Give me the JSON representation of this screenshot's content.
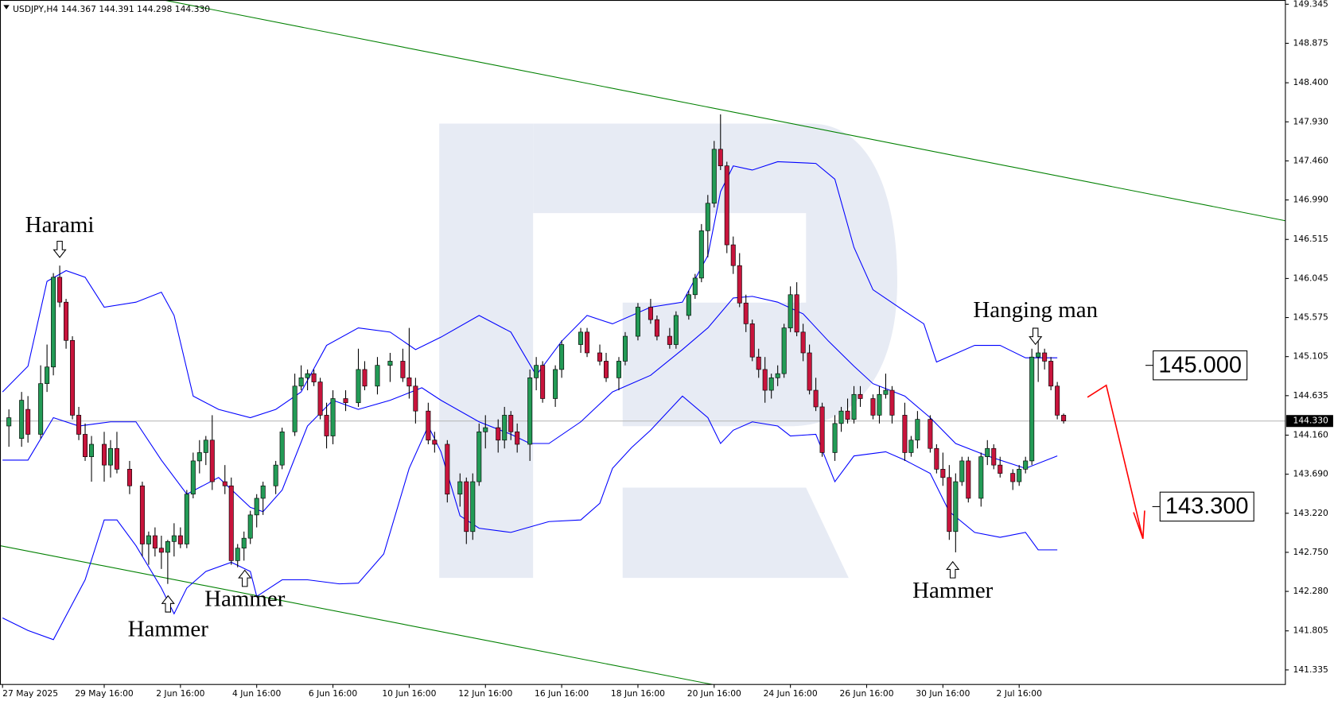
{
  "chart_data": {
    "type": "candlestick",
    "title": "USDJPY,H4  144.367 144.391 144.298 144.330",
    "up_color": "#239b56",
    "down_color": "#c8143c",
    "xlim": [
      -0.4,
      201.9
    ],
    "ylim": [
      141.16,
      149.396
    ],
    "yticks": [
      149.345,
      148.875,
      {
        "value": 148.4,
        "label": "148.400"
      },
      {
        "value": 147.93,
        "label": "147.930"
      },
      {
        "value": 147.46,
        "label": "147.460"
      },
      {
        "value": 146.99,
        "label": "146.990"
      },
      146.515,
      146.045,
      145.575,
      145.105,
      144.635,
      {
        "value": 144.16,
        "label": "144.160"
      },
      {
        "value": 143.69,
        "label": "143.690"
      },
      {
        "value": 143.22,
        "label": "143.220"
      },
      {
        "value": 142.75,
        "label": "142.750"
      },
      {
        "value": 142.28,
        "label": "142.280"
      },
      141.805,
      141.335
    ],
    "xticks": [
      {
        "value": 0,
        "label": "27 May 2025"
      },
      {
        "value": 16,
        "label": "29 May 16:00"
      },
      {
        "value": 28,
        "label": "2 Jun 16:00"
      },
      {
        "value": 40,
        "label": "4 Jun 16:00"
      },
      {
        "value": 52,
        "label": "6 Jun 16:00"
      },
      {
        "value": 64,
        "label": "10 Jun 16:00"
      },
      {
        "value": 76,
        "label": "12 Jun 16:00"
      },
      {
        "value": 88,
        "label": "16 Jun 16:00"
      },
      {
        "value": 100,
        "label": "18 Jun 16:00"
      },
      {
        "value": 112,
        "label": "20 Jun 16:00"
      },
      {
        "value": 124,
        "label": "24 Jun 16:00"
      },
      {
        "value": 136,
        "label": "26 Jun 16:00"
      },
      {
        "value": 148,
        "label": "30 Jun 16:00"
      },
      {
        "value": 160,
        "label": "2 Jul 16:00"
      }
    ],
    "x": [
      1,
      3,
      4,
      6,
      7,
      8,
      9,
      10,
      11,
      12,
      13,
      14,
      16,
      17,
      18,
      20,
      22,
      23,
      24,
      25,
      26,
      27,
      28,
      29,
      30,
      31,
      32,
      33,
      35,
      36,
      37,
      38,
      39,
      40,
      41,
      43,
      44,
      46,
      47,
      48,
      49,
      50,
      51,
      52,
      54,
      56,
      57,
      59,
      61,
      63,
      64,
      65,
      67,
      68,
      70,
      72,
      73,
      74,
      75,
      76,
      78,
      79,
      80,
      81,
      83,
      84,
      85,
      87,
      88,
      91,
      92,
      94,
      95,
      97,
      98,
      100,
      102,
      103,
      105,
      106,
      108,
      109,
      110,
      111,
      112,
      113,
      114,
      115,
      116,
      117,
      118,
      119,
      120,
      121,
      122,
      123,
      124,
      125,
      126,
      127,
      128,
      129,
      131,
      132,
      133,
      134,
      135,
      137,
      138,
      139,
      140,
      142,
      143,
      144,
      146,
      147,
      148,
      149,
      150,
      151,
      152,
      154,
      155,
      156,
      157,
      159,
      160,
      161,
      162,
      163,
      164,
      165,
      166,
      167
    ],
    "ohlc": [
      [
        144.27,
        144.47,
        144.02,
        144.37
      ],
      [
        144.12,
        144.68,
        144.02,
        144.58
      ],
      [
        144.47,
        144.63,
        144.07,
        144.17
      ],
      [
        144.17,
        145.0,
        144.12,
        144.78
      ],
      [
        144.78,
        145.25,
        144.68,
        144.98
      ],
      [
        144.98,
        146.11,
        144.88,
        146.06
      ],
      [
        146.06,
        146.2,
        145.7,
        145.76
      ],
      [
        145.76,
        145.8,
        145.2,
        145.3
      ],
      [
        145.3,
        145.35,
        144.35,
        144.4
      ],
      [
        144.4,
        144.5,
        144.1,
        144.17
      ],
      [
        144.17,
        144.3,
        143.85,
        143.9
      ],
      [
        143.9,
        144.15,
        143.6,
        144.05
      ],
      [
        144.05,
        144.2,
        143.6,
        143.8
      ],
      [
        143.8,
        144.1,
        143.65,
        144.0
      ],
      [
        144.0,
        144.2,
        143.7,
        143.75
      ],
      [
        143.75,
        143.85,
        143.45,
        143.55
      ],
      [
        143.55,
        143.6,
        142.7,
        142.85
      ],
      [
        142.85,
        143.0,
        142.6,
        142.95
      ],
      [
        142.95,
        143.05,
        142.7,
        142.8
      ],
      [
        142.8,
        142.95,
        142.55,
        142.75
      ],
      [
        142.75,
        142.9,
        142.37,
        142.88
      ],
      [
        142.88,
        143.1,
        142.7,
        142.95
      ],
      [
        142.95,
        143.05,
        142.8,
        142.85
      ],
      [
        142.85,
        143.5,
        142.8,
        143.45
      ],
      [
        143.45,
        143.95,
        143.4,
        143.85
      ],
      [
        143.85,
        144.1,
        143.7,
        143.95
      ],
      [
        143.95,
        144.15,
        143.8,
        144.1
      ],
      [
        144.1,
        144.4,
        143.5,
        143.6
      ],
      [
        143.6,
        143.8,
        143.45,
        143.55
      ],
      [
        143.55,
        143.65,
        142.6,
        142.65
      ],
      [
        142.65,
        142.85,
        142.57,
        142.8
      ],
      [
        142.8,
        143.0,
        142.65,
        142.92
      ],
      [
        142.92,
        143.25,
        142.85,
        143.2
      ],
      [
        143.2,
        143.45,
        143.05,
        143.4
      ],
      [
        143.4,
        143.6,
        143.2,
        143.55
      ],
      [
        143.55,
        143.85,
        143.45,
        143.8
      ],
      [
        143.8,
        144.25,
        143.75,
        144.2
      ],
      [
        144.2,
        144.9,
        144.15,
        144.75
      ],
      [
        144.75,
        145.0,
        144.7,
        144.85
      ],
      [
        144.85,
        144.95,
        144.7,
        144.9
      ],
      [
        144.9,
        144.95,
        144.75,
        144.8
      ],
      [
        144.8,
        144.85,
        144.35,
        144.4
      ],
      [
        144.4,
        144.55,
        144.0,
        144.15
      ],
      [
        144.15,
        144.7,
        144.05,
        144.6
      ],
      [
        144.6,
        144.7,
        144.45,
        144.55
      ],
      [
        144.55,
        145.2,
        144.5,
        144.95
      ],
      [
        144.95,
        145.05,
        144.7,
        144.75
      ],
      [
        144.75,
        145.1,
        144.65,
        145.0
      ],
      [
        145.0,
        145.15,
        144.8,
        145.05
      ],
      [
        145.05,
        145.2,
        144.8,
        144.85
      ],
      [
        144.85,
        145.45,
        144.6,
        144.75
      ],
      [
        144.75,
        144.85,
        144.3,
        144.45
      ],
      [
        144.45,
        144.55,
        144.05,
        144.1
      ],
      [
        144.1,
        144.2,
        143.95,
        144.05
      ],
      [
        144.05,
        144.1,
        143.35,
        143.45
      ],
      [
        143.45,
        143.7,
        143.3,
        143.6
      ],
      [
        143.6,
        143.65,
        142.85,
        143.0
      ],
      [
        143.0,
        143.7,
        142.9,
        143.6
      ],
      [
        143.6,
        144.3,
        143.55,
        144.2
      ],
      [
        144.2,
        144.4,
        144.0,
        144.25
      ],
      [
        144.25,
        144.35,
        143.95,
        144.1
      ],
      [
        144.1,
        144.5,
        144.0,
        144.4
      ],
      [
        144.4,
        144.45,
        144.1,
        144.2
      ],
      [
        144.2,
        144.3,
        143.95,
        144.05
      ],
      [
        144.05,
        144.95,
        143.85,
        144.85
      ],
      [
        144.85,
        145.1,
        144.7,
        145.0
      ],
      [
        145.0,
        145.05,
        144.55,
        144.6
      ],
      [
        144.6,
        145.0,
        144.5,
        144.95
      ],
      [
        144.95,
        145.3,
        144.85,
        145.25
      ],
      [
        145.25,
        145.45,
        145.15,
        145.4
      ],
      [
        145.4,
        145.45,
        145.1,
        145.15
      ],
      [
        145.15,
        145.25,
        145.0,
        145.05
      ],
      [
        145.05,
        145.15,
        144.8,
        144.85
      ],
      [
        144.85,
        145.1,
        144.7,
        145.05
      ],
      [
        145.05,
        145.4,
        145.0,
        145.35
      ],
      [
        145.35,
        145.75,
        145.3,
        145.7
      ],
      [
        145.7,
        145.8,
        145.5,
        145.55
      ],
      [
        145.55,
        145.6,
        145.3,
        145.35
      ],
      [
        145.35,
        145.45,
        145.2,
        145.25
      ],
      [
        145.25,
        145.65,
        145.2,
        145.6
      ],
      [
        145.6,
        145.9,
        145.55,
        145.85
      ],
      [
        145.85,
        146.1,
        145.8,
        146.05
      ],
      [
        146.05,
        146.7,
        146.0,
        146.62
      ],
      [
        146.62,
        147.05,
        146.3,
        146.95
      ],
      [
        146.95,
        147.7,
        146.9,
        147.6
      ],
      [
        147.6,
        148.02,
        147.35,
        147.4
      ],
      [
        147.4,
        147.45,
        146.35,
        146.45
      ],
      [
        146.45,
        146.55,
        146.1,
        146.2
      ],
      [
        146.2,
        146.35,
        145.7,
        145.75
      ],
      [
        145.75,
        145.85,
        145.4,
        145.5
      ],
      [
        145.5,
        145.55,
        145.05,
        145.1
      ],
      [
        145.1,
        145.2,
        144.85,
        144.95
      ],
      [
        144.95,
        145.1,
        144.55,
        144.7
      ],
      [
        144.7,
        144.9,
        144.6,
        144.85
      ],
      [
        144.85,
        145.0,
        144.75,
        144.9
      ],
      [
        144.9,
        145.5,
        144.85,
        145.45
      ],
      [
        145.45,
        145.95,
        145.4,
        145.85
      ],
      [
        145.85,
        146.0,
        145.35,
        145.4
      ],
      [
        145.4,
        145.5,
        145.05,
        145.15
      ],
      [
        145.15,
        145.25,
        144.65,
        144.7
      ],
      [
        144.7,
        144.85,
        144.45,
        144.5
      ],
      [
        144.5,
        144.55,
        143.9,
        143.95
      ],
      [
        143.95,
        144.4,
        143.85,
        144.3
      ],
      [
        144.3,
        144.5,
        144.2,
        144.45
      ],
      [
        144.45,
        144.6,
        144.3,
        144.35
      ],
      [
        144.35,
        144.75,
        144.3,
        144.65
      ],
      [
        144.65,
        144.75,
        144.5,
        144.6
      ],
      [
        144.6,
        144.65,
        144.35,
        144.4
      ],
      [
        144.4,
        144.75,
        144.3,
        144.65
      ],
      [
        144.65,
        144.9,
        144.6,
        144.7
      ],
      [
        144.7,
        144.75,
        144.3,
        144.4
      ],
      [
        144.4,
        144.55,
        143.85,
        143.95
      ],
      [
        143.95,
        144.15,
        143.9,
        144.1
      ],
      [
        144.1,
        144.45,
        144.0,
        144.35
      ],
      [
        144.35,
        144.4,
        143.95,
        144.0
      ],
      [
        144.0,
        144.05,
        143.7,
        143.75
      ],
      [
        143.75,
        143.95,
        143.55,
        143.65
      ],
      [
        143.65,
        143.8,
        142.9,
        143.0
      ],
      [
        143.0,
        143.7,
        142.75,
        143.6
      ],
      [
        143.6,
        143.9,
        143.55,
        143.85
      ],
      [
        143.85,
        143.9,
        143.35,
        143.4
      ],
      [
        143.4,
        143.95,
        143.3,
        143.9
      ],
      [
        143.9,
        144.1,
        143.8,
        144.0
      ],
      [
        144.0,
        144.05,
        143.75,
        143.8
      ],
      [
        143.8,
        143.9,
        143.65,
        143.7
      ],
      [
        143.7,
        143.75,
        143.5,
        143.6
      ],
      [
        143.6,
        143.8,
        143.55,
        143.75
      ],
      [
        143.75,
        143.9,
        143.7,
        143.85
      ],
      [
        143.85,
        145.2,
        143.8,
        145.1
      ],
      [
        145.1,
        145.3,
        144.8,
        145.15
      ],
      [
        145.15,
        145.2,
        144.95,
        145.05
      ],
      [
        145.05,
        145.1,
        144.7,
        144.75
      ],
      [
        144.75,
        144.8,
        144.35,
        144.4
      ],
      [
        144.4,
        144.42,
        144.3,
        144.33
      ]
    ],
    "bands": [
      {
        "color": "#0000ff",
        "x": [
          0,
          4,
          7,
          10,
          13,
          16,
          21,
          25,
          27,
          30,
          34,
          39,
          43,
          47,
          51,
          56,
          61,
          65,
          69,
          75,
          80,
          84,
          88,
          92,
          96,
          102,
          107,
          111,
          113,
          115,
          118,
          122,
          128,
          131,
          134,
          137,
          142,
          145,
          147,
          153,
          157,
          161,
          166
        ],
        "values": [
          144.68,
          144.99,
          146.01,
          146.14,
          146.06,
          145.7,
          145.76,
          145.88,
          145.6,
          144.63,
          144.47,
          144.37,
          144.47,
          144.68,
          145.24,
          145.45,
          145.4,
          145.19,
          145.34,
          145.6,
          145.4,
          144.88,
          145.29,
          145.6,
          145.5,
          145.7,
          145.76,
          146.32,
          147.09,
          147.4,
          147.35,
          147.45,
          147.43,
          147.24,
          146.42,
          145.91,
          145.65,
          145.5,
          145.04,
          145.24,
          145.24,
          145.09,
          145.09
        ]
      },
      {
        "color": "#0000ff",
        "x": [
          0,
          4,
          8,
          12,
          17,
          21,
          25,
          29,
          34,
          39,
          41,
          44,
          48,
          52,
          56,
          61,
          66,
          69,
          75,
          80,
          83,
          86,
          91,
          96,
          102,
          107,
          111,
          115,
          118,
          122,
          126,
          130,
          134,
          137,
          142,
          146,
          150,
          155,
          161,
          166
        ],
        "values": [
          143.86,
          143.86,
          144.37,
          144.27,
          144.32,
          144.32,
          143.86,
          143.45,
          143.65,
          143.29,
          143.24,
          143.5,
          144.27,
          144.58,
          144.47,
          144.58,
          144.73,
          144.58,
          144.32,
          144.17,
          144.06,
          144.06,
          144.32,
          144.68,
          144.88,
          145.19,
          145.45,
          145.81,
          145.83,
          145.76,
          145.62,
          145.29,
          144.99,
          144.78,
          144.63,
          144.37,
          144.06,
          143.91,
          143.76,
          143.91
        ]
      },
      {
        "color": "#0000ff",
        "x": [
          0,
          4,
          8,
          13,
          16,
          18,
          21,
          25,
          27,
          29,
          32,
          36,
          39,
          40,
          44,
          48,
          53,
          56,
          60,
          64,
          67,
          69,
          72,
          75,
          80,
          86,
          91,
          94,
          96,
          99,
          102,
          107,
          111,
          113,
          115,
          118,
          122,
          124,
          128,
          131,
          134,
          139,
          142,
          146,
          149,
          153,
          157,
          161,
          163,
          166
        ],
        "values": [
          141.96,
          141.81,
          141.7,
          142.42,
          143.14,
          143.14,
          142.83,
          142.32,
          142.01,
          142.32,
          142.52,
          142.63,
          142.52,
          142.22,
          142.42,
          142.42,
          142.37,
          142.38,
          142.73,
          143.76,
          144.27,
          143.96,
          143.19,
          143.04,
          142.99,
          143.12,
          143.14,
          143.34,
          143.76,
          144.01,
          144.22,
          144.63,
          144.37,
          144.06,
          144.22,
          144.32,
          144.27,
          144.15,
          144.17,
          143.6,
          143.91,
          143.96,
          143.86,
          143.7,
          143.24,
          142.99,
          142.93,
          142.99,
          142.78,
          142.78
        ]
      }
    ],
    "trendlines": [
      {
        "color": "#008000",
        "x": [
          25.1,
          201.9
        ],
        "y": [
          149.4,
          146.74
        ]
      },
      {
        "color": "#008000",
        "x": [
          -0.4,
          111.7
        ],
        "y": [
          142.83,
          141.16
        ]
      }
    ],
    "current_price": {
      "value": 144.33,
      "label": "144.330"
    },
    "levels": [
      {
        "value": 145.0,
        "label": "145.000"
      },
      {
        "value": 143.3,
        "label": "143.300"
      }
    ],
    "annotations": [
      "Harami",
      "Hammer",
      "Hammer",
      "Hammer",
      "Hanging man"
    ]
  }
}
